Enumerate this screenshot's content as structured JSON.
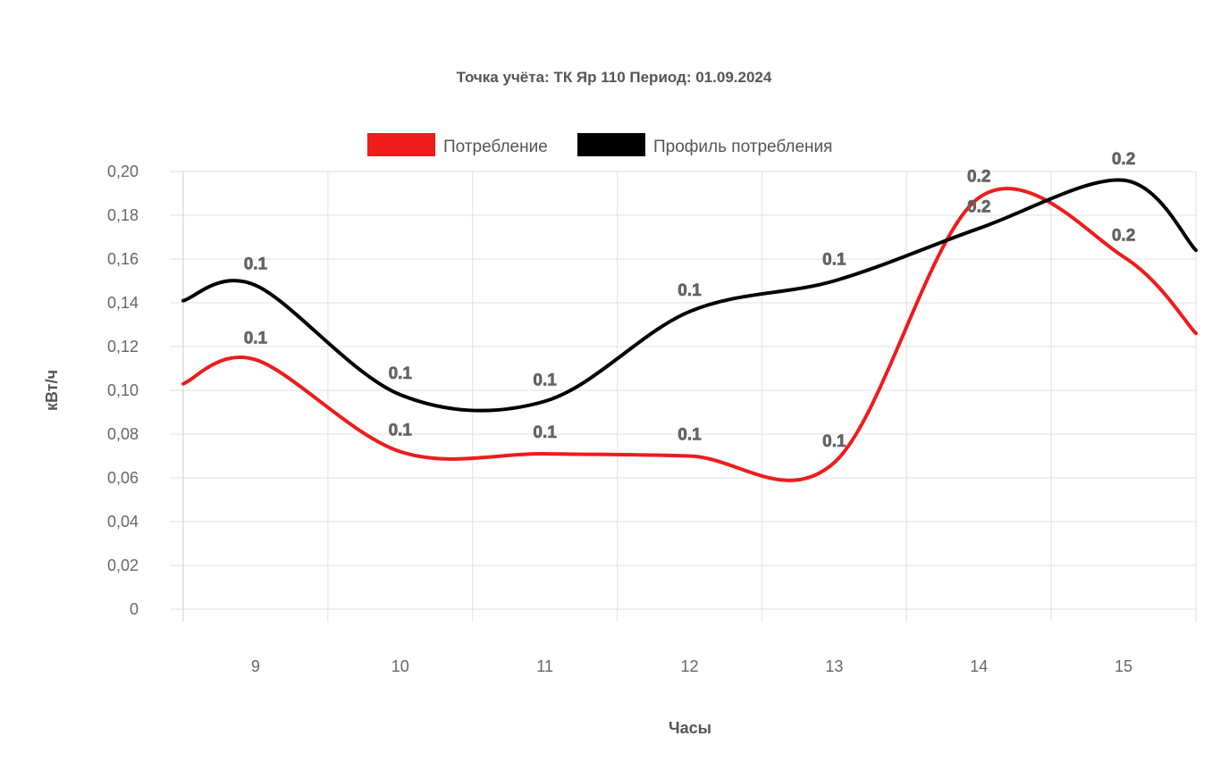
{
  "chart_data": {
    "type": "line",
    "title": "Точка учёта: ТК Яр 110 Период: 01.09.2024",
    "xlabel": "Часы",
    "ylabel": "кВт/ч",
    "categories": [
      "9",
      "10",
      "11",
      "12",
      "13",
      "14",
      "15"
    ],
    "ylim": [
      0,
      0.2
    ],
    "y_ticks": [
      "0",
      "0,02",
      "0,04",
      "0,06",
      "0,08",
      "0,10",
      "0,12",
      "0,14",
      "0,16",
      "0,18",
      "0,20"
    ],
    "grid": true,
    "legend_position": "top-center",
    "smooth": true,
    "series": [
      {
        "name": "Потребление",
        "color": "#ee1c1c",
        "values": [
          0.114,
          0.072,
          0.071,
          0.07,
          0.067,
          0.188,
          0.161
        ],
        "data_labels": [
          "0.1",
          "0.1",
          "0.1",
          "0.1",
          "0.1",
          "0.2",
          "0.2"
        ],
        "edge_values": [
          0.103,
          0.126
        ]
      },
      {
        "name": "Профиль потребления",
        "color": "#000000",
        "values": [
          0.148,
          0.098,
          0.095,
          0.136,
          0.15,
          0.174,
          0.196
        ],
        "data_labels": [
          "0.1",
          "0.1",
          "0.1",
          "0.1",
          "0.1",
          "0.2",
          "0.2"
        ],
        "edge_values": [
          0.141,
          0.164
        ]
      }
    ]
  }
}
